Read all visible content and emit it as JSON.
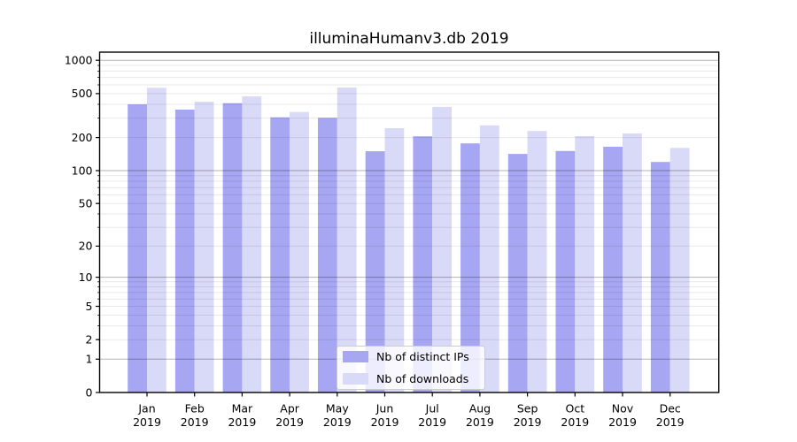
{
  "title": "illuminaHumanv3.db 2019",
  "chart_data": {
    "type": "bar",
    "title": "illuminaHumanv3.db 2019",
    "categories": [
      "Jan",
      "Feb",
      "Mar",
      "Apr",
      "May",
      "Jun",
      "Jul",
      "Aug",
      "Sep",
      "Oct",
      "Nov",
      "Dec"
    ],
    "x_tick_year": "2019",
    "series": [
      {
        "name": "Nb of distinct IPs",
        "color": "#a6a6f2",
        "values": [
          400,
          358,
          410,
          305,
          302,
          150,
          205,
          177,
          142,
          151,
          165,
          120
        ]
      },
      {
        "name": "Nb of downloads",
        "color": "#d9d9f8",
        "values": [
          565,
          423,
          472,
          341,
          568,
          243,
          379,
          258,
          229,
          206,
          218,
          161
        ]
      }
    ],
    "yscale": "log1p",
    "y_tick_labels": [
      "1000",
      "500",
      "200",
      "100",
      "50",
      "20",
      "10",
      "5",
      "2",
      "1",
      "0"
    ],
    "y_tick_values": [
      1000,
      500,
      200,
      100,
      50,
      20,
      10,
      5,
      2,
      1,
      0
    ],
    "y_major_gridline_values": [
      1,
      10,
      100,
      1000
    ],
    "ylim": [
      0,
      1120
    ],
    "grid": true,
    "legend_position": "lower center",
    "colors": {
      "bar_distinct_ips": "#a6a6f2",
      "bar_downloads": "#d9d9f8",
      "major_grid": "#b3b3b3",
      "minor_grid": "#e7e7e7",
      "axis_frame": "#000000",
      "tick_text": "#000000"
    }
  }
}
